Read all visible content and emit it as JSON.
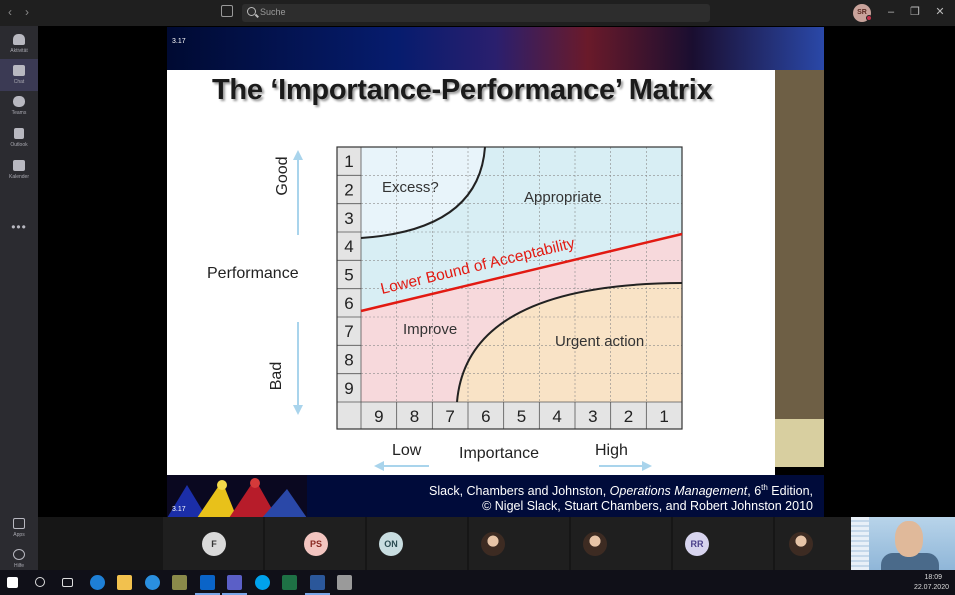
{
  "titlebar": {
    "search_placeholder": "Suche",
    "user_initials": "SR",
    "back_glyph": "‹",
    "forward_glyph": "›",
    "minimize_glyph": "–",
    "maximize_glyph": "❐",
    "close_glyph": "✕"
  },
  "rail": {
    "items": [
      {
        "label": "Aktivität",
        "icon": "bell-icon"
      },
      {
        "label": "Chat",
        "icon": "chat-icon"
      },
      {
        "label": "Teams",
        "icon": "teams-icon"
      },
      {
        "label": "Outlook",
        "icon": "outlook-icon"
      },
      {
        "label": "Kalender",
        "icon": "calendar-icon"
      }
    ],
    "more": "•••",
    "bottom_items": [
      {
        "label": "Apps",
        "icon": "apps-icon"
      },
      {
        "label": "Hilfe",
        "icon": "help-icon"
      }
    ]
  },
  "slide": {
    "number": "3.17",
    "title": "The ‘Importance-Performance’ Matrix",
    "perf_label": "Performance",
    "good_label": "Good",
    "bad_label": "Bad",
    "importance_label": "Importance",
    "low_label": "Low",
    "high_label": "High",
    "rows": [
      "1",
      "2",
      "3",
      "4",
      "5",
      "6",
      "7",
      "8",
      "9"
    ],
    "cols": [
      "9",
      "8",
      "7",
      "6",
      "5",
      "4",
      "3",
      "2",
      "1"
    ],
    "zone_excess": "Excess?",
    "zone_appropriate": "Appropriate",
    "zone_improve": "Improve",
    "zone_urgent": "Urgent action",
    "boundary_label": "Lower Bound of Acceptability",
    "credit_authors": "Slack, Chambers and Johnston, ",
    "credit_book": "Operations Management",
    "credit_edition_prefix": ", 6",
    "credit_edition_sup": "th",
    "credit_edition_suffix": " Edition,",
    "credit_copyright": "© Nigel Slack, Stuart Chambers, and Robert Johnston 2010",
    "colors": {
      "excess": "#e8f4fa",
      "appropriate": "#d8eef4",
      "improve": "#f7d9dc",
      "urgent": "#f9e3c6",
      "boundary": "#e21a12"
    }
  },
  "participants": [
    {
      "initials": "F",
      "bg": "#d9d9d9",
      "fg": "#333333"
    },
    {
      "initials": "PS",
      "bg": "#f2c5c0",
      "fg": "#8a2a22"
    },
    {
      "initials": "ON",
      "bg": "#c8dde0",
      "fg": "#2b4c52"
    },
    {
      "initials": "",
      "photo": true
    },
    {
      "initials": "",
      "photo": true
    },
    {
      "initials": "RR",
      "bg": "#d7d4ee",
      "fg": "#4a3f8a"
    },
    {
      "initials": "",
      "photo": true
    }
  ],
  "taskbar": {
    "time": "18:09",
    "date": "22.07.2020",
    "icons": [
      "windows-start-icon",
      "search-icon",
      "task-view-icon",
      "edge-icon",
      "file-explorer-icon",
      "internet-explorer-icon",
      "stylus-icon",
      "outlook-icon",
      "teams-icon",
      "skype-icon",
      "excel-icon",
      "word-icon",
      "snipping-tool-icon"
    ]
  }
}
